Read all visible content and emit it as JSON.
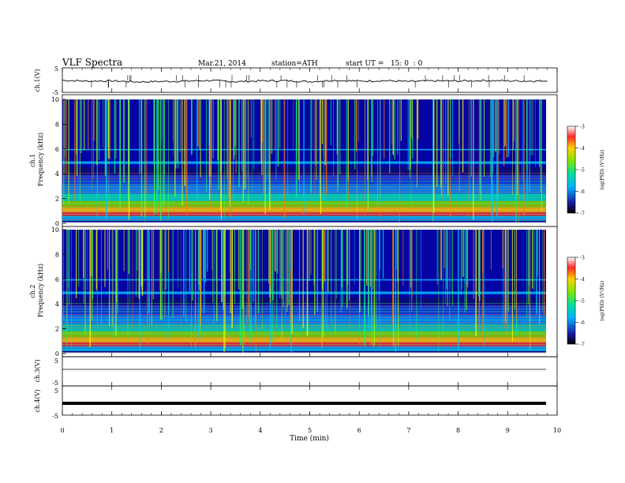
{
  "header": {
    "title": "VLF Spectra",
    "date": "Mar.21, 2014",
    "station": "station=ATH",
    "start": "start UT =   15: 0  : 0"
  },
  "chart_data": [
    {
      "type": "line",
      "panel": "ch1-waveform",
      "ylabel": "ch.1(V)",
      "ylim": [
        -5,
        5
      ],
      "yticks": [
        "5",
        "-5"
      ],
      "x": [
        0,
        0.5,
        1,
        1.5,
        2,
        2.5,
        3,
        3.5,
        4,
        4.5,
        5,
        5.5,
        6,
        6.5,
        7,
        7.5,
        8,
        8.5,
        9,
        9.5,
        9.8
      ],
      "values": [
        0.5,
        0.1,
        0.2,
        -0.3,
        -0.1,
        0.1,
        0.4,
        -0.2,
        0.2,
        0.3,
        -0.2,
        0.5,
        0.1,
        0.3,
        -0.1,
        0.2,
        0.1,
        0.4,
        0.2,
        0.1,
        0.3
      ]
    },
    {
      "type": "heatmap",
      "panel": "ch1-spectrogram",
      "ylabel": "ch.1\nFrequency (kHz)",
      "ylim": [
        0,
        10
      ],
      "yticks": [
        "0",
        "2",
        "4",
        "6",
        "8",
        "10"
      ],
      "colorbar": {
        "label": "log(PSD) (V²/Hz)",
        "range": [
          -7,
          -3
        ],
        "ticks": [
          "-3",
          "-4",
          "-5",
          "-6",
          "-7"
        ]
      }
    },
    {
      "type": "heatmap",
      "panel": "ch2-spectrogram",
      "ylabel": "ch.2\nFrequency (kHz)",
      "ylim": [
        0,
        10
      ],
      "yticks": [
        "0",
        "2",
        "4",
        "6",
        "8",
        "10"
      ],
      "colorbar": {
        "label": "log(PSD) (V²/Hz)",
        "range": [
          -7,
          -3
        ],
        "ticks": [
          "-3",
          "-4",
          "-5",
          "-6",
          "-7"
        ]
      }
    },
    {
      "type": "line",
      "panel": "ch3-waveform",
      "ylabel": "ch.3(V)",
      "ylim": [
        -5,
        5
      ],
      "yticks": [
        "5",
        "-5"
      ],
      "x": [
        0,
        9.8
      ],
      "values": [
        0,
        0
      ]
    },
    {
      "type": "line",
      "panel": "ch4-waveform",
      "ylabel": "ch.4(V)",
      "ylim": [
        -5,
        5
      ],
      "yticks": [
        "5",
        "-5"
      ],
      "x": [
        0,
        9.8
      ],
      "values": [
        0,
        0
      ]
    }
  ],
  "xaxis": {
    "label": "Time (min)",
    "ticks": [
      "0",
      "1",
      "2",
      "3",
      "4",
      "5",
      "6",
      "7",
      "8",
      "9",
      "10"
    ],
    "xlim": [
      0,
      10
    ]
  },
  "colors": {
    "spectro_bg": "#0a0a7a",
    "trace": "#000000"
  }
}
